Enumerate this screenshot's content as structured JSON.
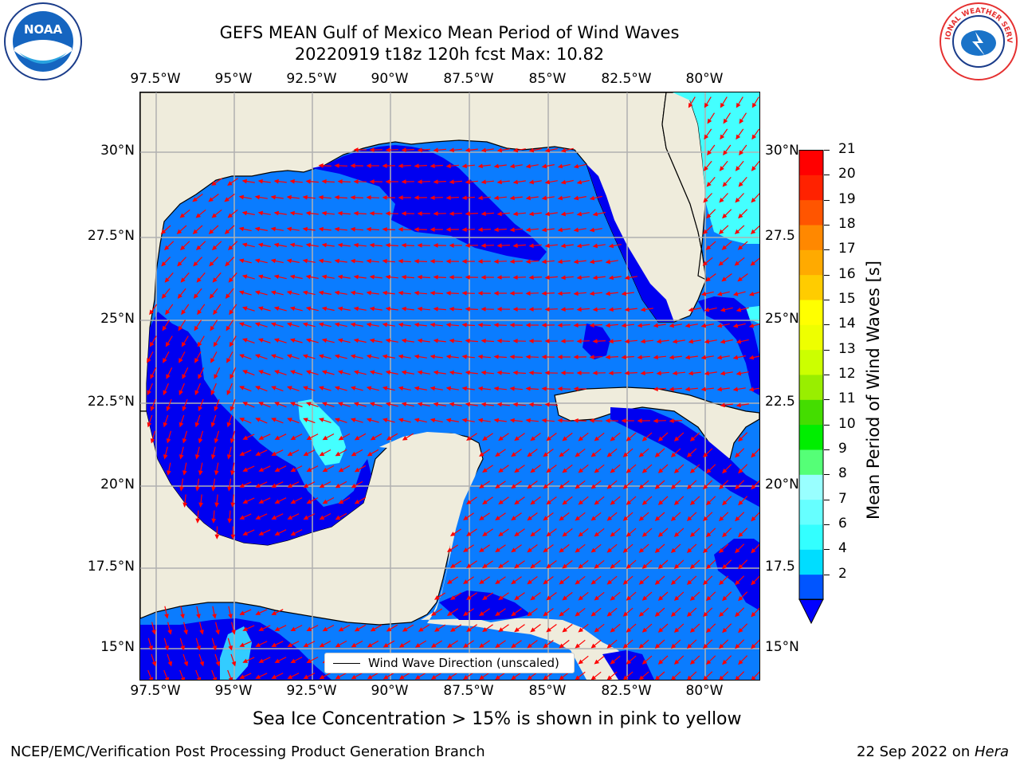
{
  "title": {
    "line1": "GEFS MEAN Gulf of Mexico Mean Period of Wind Waves",
    "line2": "20220919 t18z 120h fcst   Max: 10.82"
  },
  "logos": {
    "left": {
      "icon": "noaa-logo",
      "text": "NOAA"
    },
    "right": {
      "icon": "nws-logo",
      "text": "NATIONAL WEATHER SERVICE"
    }
  },
  "map": {
    "lon_ticks": [
      "97.5°W",
      "95°W",
      "92.5°W",
      "90°W",
      "87.5°W",
      "85°W",
      "82.5°W",
      "80°W"
    ],
    "lat_ticks_left": [
      "30°N",
      "27.5°N",
      "25°N",
      "22.5°N",
      "20°N",
      "17.5°N",
      "15°N"
    ],
    "lat_ticks_right": [
      "30°N",
      "27.5",
      "25°N",
      "22.5",
      "20°N",
      "17.5",
      "15°N"
    ],
    "land_color": "#efecdc",
    "gridline_color": "#b0b0b0",
    "arrow_color": "#ff0000",
    "legend_label": "Wind Wave Direction (unscaled)"
  },
  "colorbar": {
    "label": "Mean Period of Wind Waves [s]",
    "ticks": [
      "2",
      "4",
      "6",
      "7",
      "8",
      "9",
      "10",
      "11",
      "12",
      "13",
      "14",
      "15",
      "16",
      "17",
      "18",
      "19",
      "20",
      "21"
    ],
    "colors": [
      "#0055ff",
      "#00ddff",
      "#33ffff",
      "#66ffff",
      "#99ffff",
      "#55ff77",
      "#00ee00",
      "#44dd00",
      "#99ee00",
      "#ccff00",
      "#eeff00",
      "#ffff00",
      "#ffcc00",
      "#ffaa00",
      "#ff8800",
      "#ff5500",
      "#ff2200",
      "#ff0000"
    ],
    "under_color": "#0000ff"
  },
  "chart_data": {
    "type": "heatmap",
    "title": "GEFS MEAN Gulf of Mexico Mean Period of Wind Waves",
    "subtitle": "20220919 t18z 120h fcst   Max: 10.82",
    "max_value": 10.82,
    "units": "s",
    "lon_range": [
      "98°W",
      "78°W"
    ],
    "lat_range": [
      "14°N",
      "31.5°N"
    ],
    "colorbar_levels": [
      2,
      4,
      6,
      7,
      8,
      9,
      10,
      11,
      12,
      13,
      14,
      15,
      16,
      17,
      18,
      19,
      20,
      21
    ],
    "overlay": "Wind Wave Direction (unscaled)",
    "grid": true
  },
  "note": "Sea Ice Concentration > 15% is shown in pink to yellow",
  "footer": {
    "left": "NCEP/EMC/Verification Post Processing Product Generation Branch",
    "right_prefix": "22 Sep 2022 on ",
    "right_host": "Hera"
  }
}
